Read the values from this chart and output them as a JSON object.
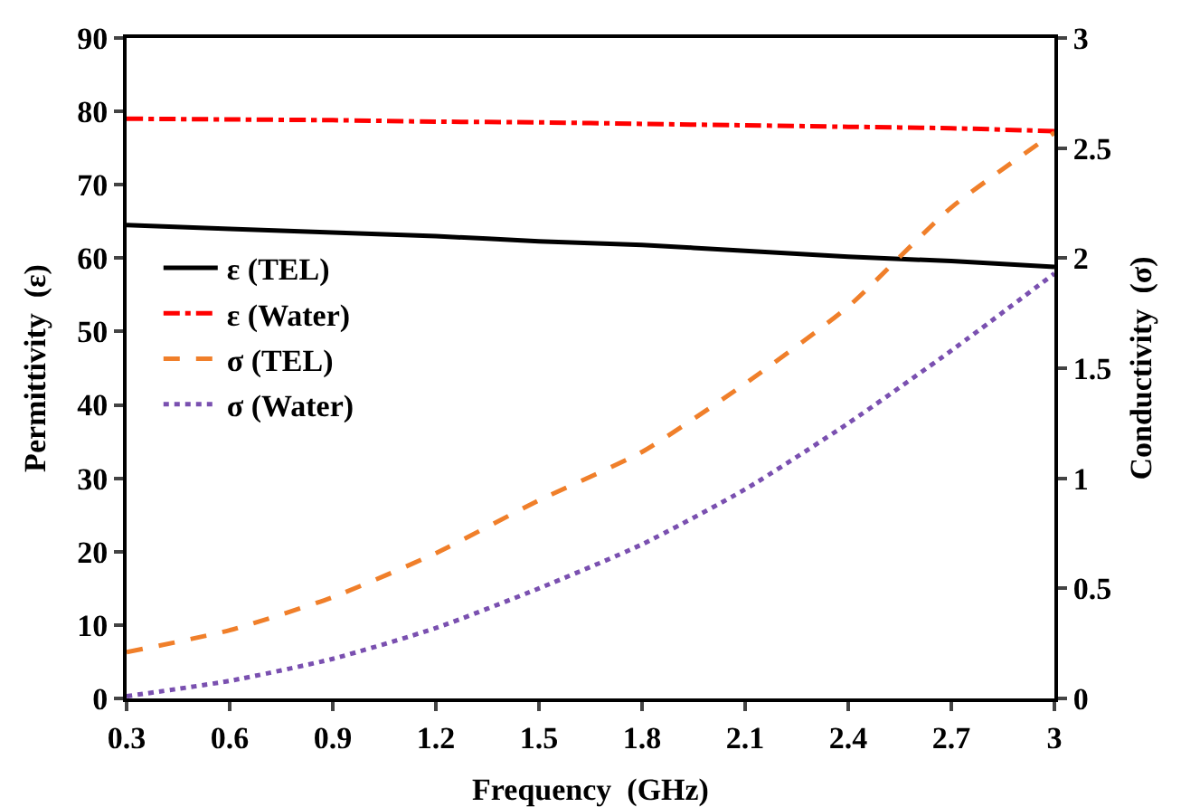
{
  "chart_data": {
    "type": "line",
    "xlabel": "Frequency  (GHz)",
    "ylabel": "Permittivity  (ε)",
    "y2label": "Conductivity  (σ)",
    "x": [
      0.3,
      0.6,
      0.9,
      1.2,
      1.5,
      1.8,
      2.1,
      2.4,
      2.7,
      3
    ],
    "xlim": [
      0.3,
      3
    ],
    "xticks": [
      0.3,
      0.6,
      0.9,
      1.2,
      1.5,
      1.8,
      2.1,
      2.4,
      2.7,
      3
    ],
    "ylim": [
      0,
      90
    ],
    "yticks": [
      0,
      10,
      20,
      30,
      40,
      50,
      60,
      70,
      80,
      90
    ],
    "y2lim": [
      0,
      3
    ],
    "y2ticks": [
      0,
      0.5,
      1,
      1.5,
      2,
      2.5,
      3
    ],
    "grid": false,
    "legend": "left",
    "marker": "none",
    "series": [
      {
        "name": "ε (TEL)",
        "color": "#000000",
        "line_style": "solid",
        "values": [
          64.5,
          64,
          63.5,
          63,
          62.3,
          61.8,
          61,
          60.2,
          59.6,
          58.8
        ]
      },
      {
        "name": "ε (Water)",
        "color": "#ff0000",
        "line_style": "dashdot",
        "values": [
          79,
          78.9,
          78.8,
          78.6,
          78.5,
          78.3,
          78.1,
          77.9,
          77.7,
          77.3
        ]
      },
      {
        "name": "σ (TEL)",
        "color": "#f07f2a",
        "line_style": "dashed",
        "axis": "y2",
        "values": [
          0.21,
          0.31,
          0.46,
          0.66,
          0.9,
          1.12,
          1.43,
          1.78,
          2.23,
          2.57
        ]
      },
      {
        "name": "σ (Water)",
        "color": "#7a50b0",
        "line_style": "dotted",
        "axis": "y2",
        "values": [
          0.01,
          0.08,
          0.18,
          0.32,
          0.5,
          0.7,
          0.95,
          1.25,
          1.58,
          1.93
        ]
      }
    ]
  }
}
